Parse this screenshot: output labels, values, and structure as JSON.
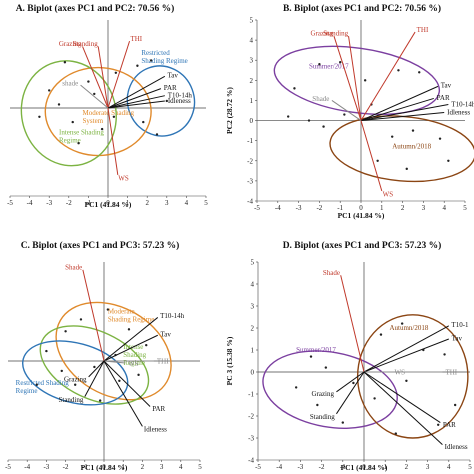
{
  "chart_data": [
    {
      "type": "scatter",
      "title": "A. Biplot (axes PC1 and  PC2: 70.56 %)",
      "xlabel": "PC1 (41.84 %)",
      "ylabel": "",
      "xlim": [
        -5,
        5
      ],
      "ylim": [
        -5,
        5
      ],
      "xticks": [
        "-5",
        "-4",
        "-3",
        "-2",
        "-1",
        "0",
        "1",
        "2",
        "3",
        "4",
        "5"
      ],
      "yticks": [],
      "vectors": [
        {
          "label": "Grazing",
          "x": -1.3,
          "y": 3.5,
          "color": "#c0392b"
        },
        {
          "label": "Standing",
          "x": -0.5,
          "y": 3.5,
          "color": "#c0392b"
        },
        {
          "label": "THI",
          "x": 1.1,
          "y": 3.8,
          "color": "#c0392b"
        },
        {
          "label": "Tav",
          "x": 2.9,
          "y": 1.8,
          "color": "#111111"
        },
        {
          "label": "PAR",
          "x": 2.7,
          "y": 1.1,
          "color": "#111111"
        },
        {
          "label": "T10-14h",
          "x": 2.9,
          "y": 0.7,
          "color": "#111111"
        },
        {
          "label": "Idleness",
          "x": 2.9,
          "y": 0.4,
          "color": "#111111"
        },
        {
          "label": "shade",
          "x": -1.4,
          "y": 1.3,
          "color": "#888888"
        },
        {
          "label": "WS",
          "x": 0.5,
          "y": -3.8,
          "color": "#c0392b"
        }
      ],
      "points": [
        [
          -2.2,
          2.6
        ],
        [
          -1.0,
          1.5
        ],
        [
          0.4,
          2.0
        ],
        [
          1.5,
          2.4
        ],
        [
          2.2,
          2.7
        ],
        [
          -3.0,
          1.0
        ],
        [
          -2.5,
          0.2
        ],
        [
          -1.8,
          -0.8
        ],
        [
          -3.5,
          -0.5
        ],
        [
          -0.7,
          0.8
        ],
        [
          -0.3,
          -1.2
        ],
        [
          0.3,
          -0.5
        ],
        [
          1.8,
          -0.8
        ],
        [
          2.5,
          -1.5
        ],
        [
          -1.5,
          -2.0
        ],
        [
          3.0,
          0.4
        ]
      ],
      "groups": [
        {
          "label": "Restricted\nShading Regime",
          "color": "#2e75b6"
        },
        {
          "label": "Moderate Shading\nSystem",
          "color": "#e08a2c"
        },
        {
          "label": "Intense Shading\nRegime",
          "color": "#7cb342"
        }
      ]
    },
    {
      "type": "scatter",
      "title": "B. Biplot (axes PC1 and PC2: 70.56 %)",
      "xlabel": "PC1 (41.84 %)",
      "ylabel": "PC2 (28.72 %)",
      "xlim": [
        -5,
        5
      ],
      "ylim": [
        -4,
        5
      ],
      "xticks": [
        "-5",
        "-4",
        "-3",
        "-2",
        "-1",
        "0",
        "1",
        "2",
        "3",
        "4",
        "5"
      ],
      "yticks": [
        "-4",
        "-3",
        "-2",
        "-1",
        "0",
        "1",
        "2",
        "3",
        "4",
        "5"
      ],
      "vectors": [
        {
          "label": "Grazing",
          "x": -1.3,
          "y": 4.2,
          "color": "#c0392b"
        },
        {
          "label": "Standing",
          "x": -0.6,
          "y": 4.2,
          "color": "#c0392b"
        },
        {
          "label": "THI",
          "x": 2.6,
          "y": 4.4,
          "color": "#c0392b"
        },
        {
          "label": "Tav",
          "x": 3.7,
          "y": 1.7,
          "color": "#111111"
        },
        {
          "label": "PAR",
          "x": 3.5,
          "y": 1.1,
          "color": "#111111"
        },
        {
          "label": "T10-14h",
          "x": 4.2,
          "y": 0.8,
          "color": "#111111"
        },
        {
          "label": "Idleness",
          "x": 4.0,
          "y": 0.4,
          "color": "#111111"
        },
        {
          "label": "Shade",
          "x": -1.4,
          "y": 1.0,
          "color": "#888888"
        },
        {
          "label": "WS",
          "x": 1.0,
          "y": -3.5,
          "color": "#c0392b"
        }
      ],
      "points": [
        [
          -3.2,
          1.6
        ],
        [
          -2.0,
          2.8
        ],
        [
          -1.0,
          2.9
        ],
        [
          0.2,
          2.0
        ],
        [
          1.8,
          2.5
        ],
        [
          2.8,
          2.4
        ],
        [
          -2.5,
          0.0
        ],
        [
          -0.8,
          0.3
        ],
        [
          0.5,
          0.8
        ],
        [
          -3.5,
          0.2
        ],
        [
          -1.8,
          -0.3
        ],
        [
          1.5,
          -0.8
        ],
        [
          2.5,
          -0.5
        ],
        [
          3.8,
          -0.9
        ],
        [
          0.8,
          -2.0
        ],
        [
          2.2,
          -2.4
        ],
        [
          4.2,
          -2.0
        ]
      ],
      "groups": [
        {
          "label": "Summer/2017",
          "color": "#7b3fa0"
        },
        {
          "label": "Autumn/2018",
          "color": "#8b4513"
        }
      ]
    },
    {
      "type": "scatter",
      "title": "C. Biplot (axes PC1 and PC3: 57.23 %)",
      "xlabel": "PC1 (41.84 %)",
      "ylabel": "",
      "xlim": [
        -5,
        5
      ],
      "ylim": [
        -5,
        5
      ],
      "xticks": [
        "-5",
        "-4",
        "-3",
        "-2",
        "-1",
        "0",
        "1",
        "2",
        "3",
        "4",
        "5"
      ],
      "yticks": [],
      "vectors": [
        {
          "label": "Shade",
          "x": -1.1,
          "y": 4.6,
          "color": "#c0392b"
        },
        {
          "label": "T10-14h",
          "x": 2.8,
          "y": 2.2,
          "color": "#111111"
        },
        {
          "label": "Tav",
          "x": 2.8,
          "y": 1.3,
          "color": "#111111"
        },
        {
          "label": "WS",
          "x": 1.1,
          "y": -0.1,
          "color": "#888888"
        },
        {
          "label": "THI",
          "x": 2.6,
          "y": 0.0,
          "color": "#888888"
        },
        {
          "label": "Grazing",
          "x": -0.8,
          "y": -0.8,
          "color": "#111111"
        },
        {
          "label": "Standing",
          "x": -1.0,
          "y": -1.8,
          "color": "#111111"
        },
        {
          "label": "PAR",
          "x": 2.4,
          "y": -2.3,
          "color": "#111111"
        },
        {
          "label": "Idleness",
          "x": 2.0,
          "y": -3.3,
          "color": "#111111"
        }
      ],
      "points": [
        [
          -2.0,
          1.5
        ],
        [
          -1.2,
          2.1
        ],
        [
          0.2,
          2.6
        ],
        [
          1.3,
          1.6
        ],
        [
          2.2,
          0.8
        ],
        [
          -3.0,
          0.5
        ],
        [
          -2.2,
          -0.5
        ],
        [
          -1.5,
          -1.2
        ],
        [
          -0.5,
          -0.3
        ],
        [
          0.8,
          -1.0
        ],
        [
          1.8,
          -0.7
        ],
        [
          -3.5,
          -1.2
        ],
        [
          -0.2,
          -2.0
        ],
        [
          0.6,
          0.3
        ]
      ],
      "groups": [
        {
          "label": "Moderate\nShading Regime",
          "color": "#e08a2c"
        },
        {
          "label": "Intense\nShading\nRegime",
          "color": "#7cb342"
        },
        {
          "label": "Restricted Shading\nRegime",
          "color": "#2e75b6"
        }
      ]
    },
    {
      "type": "scatter",
      "title": "D. Biplot (axes PC1 and PC3: 57.23 %)",
      "xlabel": "PC1 (41.84 %)",
      "ylabel": "PC 3 (15.38 %)",
      "xlim": [
        -5,
        5
      ],
      "ylim": [
        -4,
        5
      ],
      "xticks": [
        "-5",
        "-4",
        "-3",
        "-2",
        "-1",
        "0",
        "1",
        "2",
        "3",
        "4",
        "5"
      ],
      "yticks": [
        "-4",
        "-3",
        "-2",
        "-1",
        "0",
        "1",
        "2",
        "3",
        "4",
        "5"
      ],
      "vectors": [
        {
          "label": "Shade",
          "x": -1.1,
          "y": 4.4,
          "color": "#c0392b"
        },
        {
          "label": "T10-1",
          "x": 4.0,
          "y": 2.1,
          "color": "#111111"
        },
        {
          "label": "Tav",
          "x": 4.0,
          "y": 1.5,
          "color": "#111111"
        },
        {
          "label": "WS",
          "x": 1.3,
          "y": 0.0,
          "color": "#888888"
        },
        {
          "label": "THI",
          "x": 3.7,
          "y": 0.0,
          "color": "#888888"
        },
        {
          "label": "Grazing",
          "x": -1.3,
          "y": -0.9,
          "color": "#111111"
        },
        {
          "label": "Standing",
          "x": -1.3,
          "y": -1.9,
          "color": "#111111"
        },
        {
          "label": "PAR",
          "x": 3.6,
          "y": -2.3,
          "color": "#111111"
        },
        {
          "label": "Idleness",
          "x": 3.7,
          "y": -3.3,
          "color": "#111111"
        }
      ],
      "points": [
        [
          -2.5,
          0.7
        ],
        [
          -1.8,
          0.2
        ],
        [
          -3.2,
          -0.7
        ],
        [
          -2.2,
          -1.5
        ],
        [
          -0.5,
          -0.5
        ],
        [
          0.8,
          1.7
        ],
        [
          1.8,
          2.2
        ],
        [
          2.8,
          1.0
        ],
        [
          3.8,
          0.8
        ],
        [
          0.5,
          -1.2
        ],
        [
          2.0,
          -0.4
        ],
        [
          3.5,
          -2.4
        ],
        [
          1.5,
          -2.8
        ],
        [
          4.3,
          -1.5
        ],
        [
          -1.0,
          -2.3
        ]
      ],
      "groups": [
        {
          "label": "Summer/2017",
          "color": "#7b3fa0"
        },
        {
          "label": "Autumn/2018",
          "color": "#8b4513"
        }
      ]
    }
  ]
}
